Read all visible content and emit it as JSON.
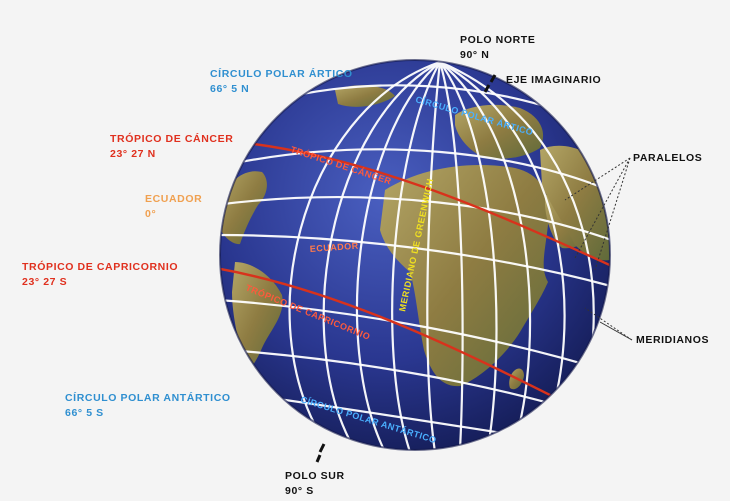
{
  "labels": {
    "north_pole": {
      "name": "POLO NORTE",
      "value": "90° N"
    },
    "axis": "EJE IMAGINARIO",
    "arctic_circle": {
      "name": "CÍRCULO POLAR ÁRTICO",
      "value": "66° 5 N"
    },
    "tropic_cancer": {
      "name": "TRÓPICO DE CÁNCER",
      "value": "23° 27 N"
    },
    "equator": {
      "name": "ECUADOR",
      "value": "0°"
    },
    "tropic_capricorn": {
      "name": "TRÓPICO DE CAPRICORNIO",
      "value": "23° 27 S"
    },
    "antarctic_circle": {
      "name": "CÍRCULO POLAR ANTÁRTICO",
      "value": "66° 5 S"
    },
    "south_pole": {
      "name": "POLO SUR",
      "value": "90° S"
    },
    "parallels": "PARALELOS",
    "meridians": "MERIDIANOS"
  },
  "globe_labels": {
    "arctic": "CÍRCULO POLAR ÁRTICO",
    "cancer": "TRÓPICO DE CÁNCER",
    "equator": "ECUADOR",
    "prime_meridian": "MERIDIANO DE GREENWICH",
    "capricorn": "TRÓPICO DE CAPRICORNIO",
    "antarctic": "CÍRCULO POLAR ANTÁRTICO"
  },
  "colors": {
    "ocean": "#2a3790",
    "land": "#9a8a4c",
    "grid": "#ffffff",
    "tropic": "#d8321c",
    "meridian": "#f0e020",
    "polar_label": "#2f8fd0"
  }
}
